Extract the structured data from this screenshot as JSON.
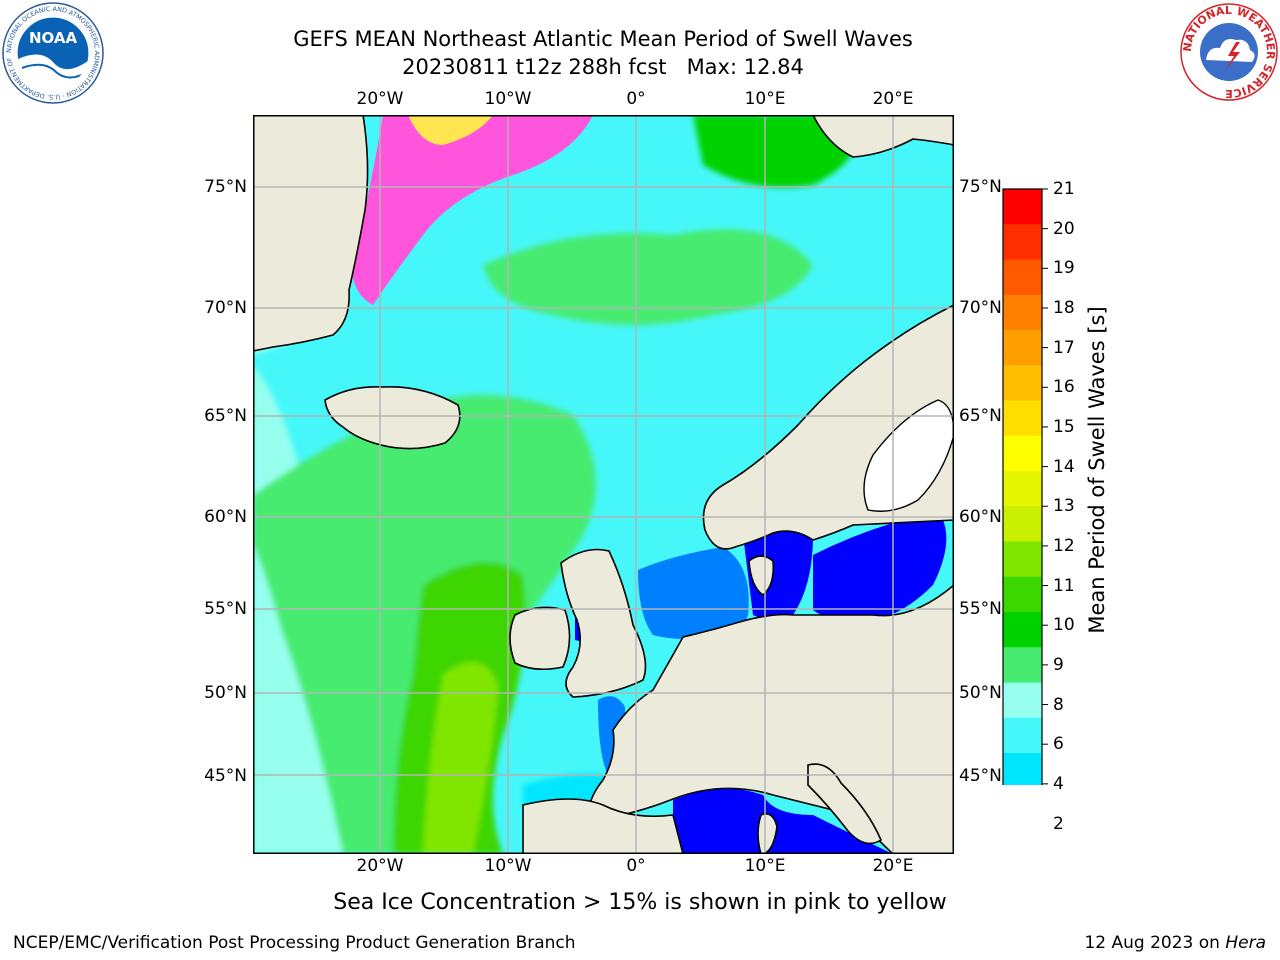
{
  "header": {
    "title_line1": "GEFS MEAN Northeast Atlantic Mean Period of Swell Waves",
    "title_line2": "20230811 t12z 288h fcst   Max: 12.84"
  },
  "map": {
    "lon_labels": [
      "20°W",
      "10°W",
      "0°",
      "10°E",
      "20°E"
    ],
    "lat_labels": [
      "75°N",
      "70°N",
      "65°N",
      "60°N",
      "55°N",
      "50°N",
      "45°N"
    ],
    "colors": {
      "land": "#ecebdb",
      "coastline": "#000000",
      "gridline": "#b4b4b4",
      "ice_pink": "#ff55dd",
      "ice_yellow": "#ffe650"
    }
  },
  "colorbar": {
    "title": "Mean Period of Swell Waves [s]",
    "labels": [
      "21",
      "20",
      "19",
      "18",
      "17",
      "16",
      "15",
      "14",
      "13",
      "12",
      "11",
      "10",
      "9",
      "8",
      "6",
      "4",
      "2"
    ],
    "colors_top_to_bottom": [
      "#ff0000",
      "#ff2e00",
      "#ff5a00",
      "#ff7f00",
      "#ff9f00",
      "#ffbf00",
      "#ffdf00",
      "#ffff00",
      "#e6f500",
      "#c8f000",
      "#80e600",
      "#3cd600",
      "#00d200",
      "#46eb70",
      "#96ffee",
      "#46f7f9",
      "#00e6ff",
      "#0080ff"
    ],
    "extend_color": "#0000ff"
  },
  "footer": {
    "ice_note": "Sea Ice Concentration > 15% is shown in pink to yellow",
    "credit": "NCEP/EMC/Verification Post Processing Product Generation Branch",
    "date": "12 Aug 2023 on ",
    "machine": "Hera"
  },
  "logos": {
    "noaa_text": "NOAA",
    "noaa_ring": "NATIONAL OCEANIC AND ATMOSPHERIC ADMINISTRATION · U.S. DEPARTMENT OF COMMERCE",
    "nws_ring": "NATIONAL WEATHER SERVICE"
  }
}
